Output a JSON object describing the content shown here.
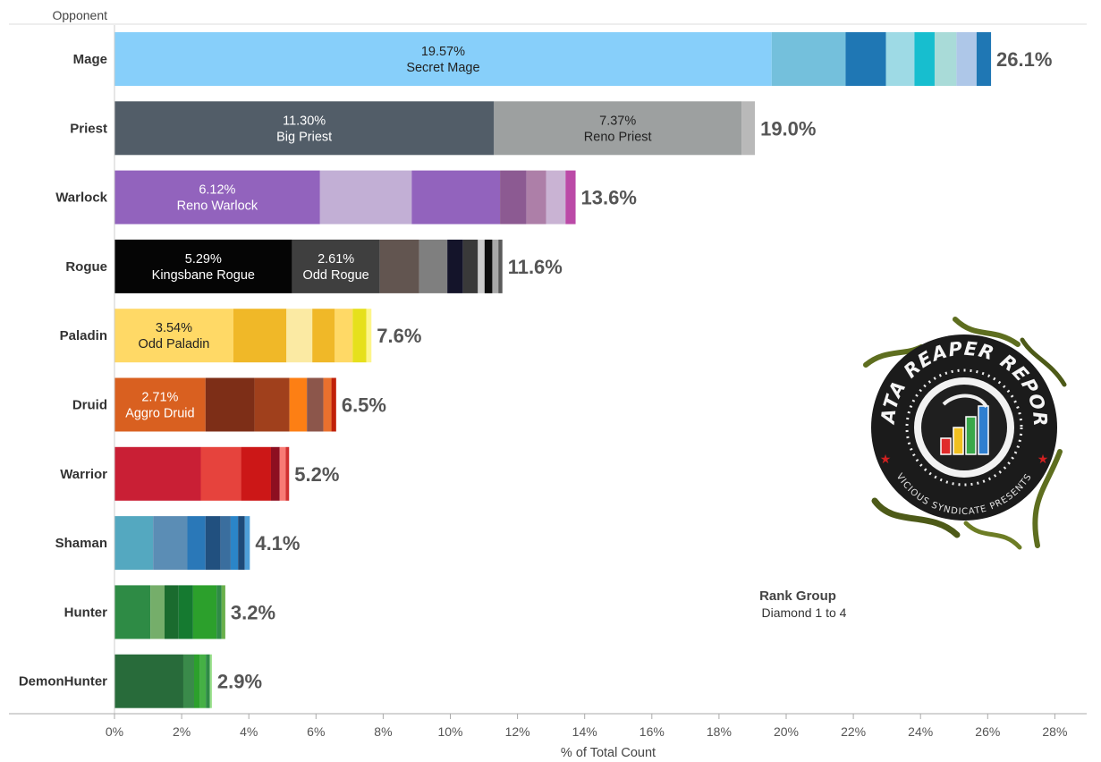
{
  "chart_data": {
    "type": "bar",
    "orientation": "horizontal",
    "stacked": true,
    "row_header": "Opponent",
    "xlabel": "% of Total Count",
    "xlim": [
      0,
      28
    ],
    "x_ticks": [
      "0%",
      "2%",
      "4%",
      "6%",
      "8%",
      "10%",
      "12%",
      "14%",
      "16%",
      "18%",
      "20%",
      "22%",
      "24%",
      "26%",
      "28%"
    ],
    "grid": false,
    "rank_group": {
      "title": "Rank Group",
      "value": "Diamond 1 to 4"
    },
    "categories": [
      {
        "name": "Mage",
        "total_label": "26.1%",
        "total": 26.1,
        "segments": [
          {
            "value": 19.57,
            "color": "#87cffa",
            "pct_label": "19.57%",
            "name": "Secret Mage",
            "text_color": "#222222"
          },
          {
            "value": 2.2,
            "color": "#74c0dc"
          },
          {
            "value": 1.2,
            "color": "#1f77b4"
          },
          {
            "value": 0.85,
            "color": "#9edae5"
          },
          {
            "value": 0.6,
            "color": "#17becf"
          },
          {
            "value": 0.65,
            "color": "#a9dbd8"
          },
          {
            "value": 0.6,
            "color": "#aec7e8"
          },
          {
            "value": 0.43,
            "color": "#1f77b4"
          }
        ]
      },
      {
        "name": "Priest",
        "total_label": "19.0%",
        "total": 19.0,
        "segments": [
          {
            "value": 11.3,
            "color": "#525d68",
            "pct_label": "11.30%",
            "name": "Big Priest",
            "text_color": "#ffffff"
          },
          {
            "value": 7.37,
            "color": "#9da0a0",
            "pct_label": "7.37%",
            "name": "Reno Priest",
            "text_color": "#222222"
          },
          {
            "value": 0.4,
            "color": "#b9b9b9"
          }
        ]
      },
      {
        "name": "Warlock",
        "total_label": "13.6%",
        "total": 13.6,
        "segments": [
          {
            "value": 6.12,
            "color": "#9263bd",
            "pct_label": "6.12%",
            "name": "Reno Warlock",
            "text_color": "#ffffff"
          },
          {
            "value": 2.73,
            "color": "#c2afd5"
          },
          {
            "value": 2.63,
            "color": "#9263bd"
          },
          {
            "value": 0.79,
            "color": "#8c5a92"
          },
          {
            "value": 0.58,
            "color": "#ad7fa8"
          },
          {
            "value": 0.58,
            "color": "#c9b3d3"
          },
          {
            "value": 0.3,
            "color": "#bb4aa7"
          }
        ]
      },
      {
        "name": "Rogue",
        "total_label": "11.6%",
        "total": 11.6,
        "segments": [
          {
            "value": 5.29,
            "color": "#050505",
            "pct_label": "5.29%",
            "name": "Kingsbane Rogue",
            "text_color": "#ffffff"
          },
          {
            "value": 2.61,
            "color": "#3f3f3f",
            "pct_label": "2.61%",
            "name": "Odd Rogue",
            "text_color": "#ffffff"
          },
          {
            "value": 1.17,
            "color": "#625550"
          },
          {
            "value": 0.84,
            "color": "#7f7f7f"
          },
          {
            "value": 0.47,
            "color": "#14142a"
          },
          {
            "value": 0.44,
            "color": "#393939"
          },
          {
            "value": 0.2,
            "color": "#cccccc"
          },
          {
            "value": 0.23,
            "color": "#0d0d0d"
          },
          {
            "value": 0.18,
            "color": "#a8a8a8"
          },
          {
            "value": 0.12,
            "color": "#5a5a5a"
          }
        ]
      },
      {
        "name": "Paladin",
        "total_label": "7.6%",
        "total": 7.6,
        "segments": [
          {
            "value": 3.54,
            "color": "#ffd966",
            "pct_label": "3.54%",
            "name": "Odd Paladin",
            "text_color": "#222222"
          },
          {
            "value": 1.58,
            "color": "#f0b828"
          },
          {
            "value": 0.77,
            "color": "#fbeaa3"
          },
          {
            "value": 0.67,
            "color": "#f0b828"
          },
          {
            "value": 0.53,
            "color": "#ffd966"
          },
          {
            "value": 0.41,
            "color": "#e6e01c"
          },
          {
            "value": 0.15,
            "color": "#fdf58a"
          }
        ]
      },
      {
        "name": "Druid",
        "total_label": "6.5%",
        "total": 6.5,
        "segments": [
          {
            "value": 2.71,
            "color": "#d96020",
            "pct_label": "2.71%",
            "name": "Aggro Druid",
            "text_color": "#ffffff"
          },
          {
            "value": 1.46,
            "color": "#7d2e17"
          },
          {
            "value": 1.04,
            "color": "#a0401c"
          },
          {
            "value": 0.52,
            "color": "#fd7f14"
          },
          {
            "value": 0.49,
            "color": "#8c564b"
          },
          {
            "value": 0.24,
            "color": "#e9702e"
          },
          {
            "value": 0.14,
            "color": "#c02008"
          }
        ]
      },
      {
        "name": "Warrior",
        "total_label": "5.2%",
        "total": 5.2,
        "segments": [
          {
            "value": 2.57,
            "color": "#c91f35"
          },
          {
            "value": 1.2,
            "color": "#e6433d"
          },
          {
            "value": 0.89,
            "color": "#cc1717"
          },
          {
            "value": 0.26,
            "color": "#8d0f20"
          },
          {
            "value": 0.18,
            "color": "#f87a74"
          },
          {
            "value": 0.1,
            "color": "#d03030"
          }
        ]
      },
      {
        "name": "Shaman",
        "total_label": "4.1%",
        "total": 4.1,
        "segments": [
          {
            "value": 1.15,
            "color": "#54a8c0"
          },
          {
            "value": 1.02,
            "color": "#5b8db5"
          },
          {
            "value": 0.54,
            "color": "#2a78b8"
          },
          {
            "value": 0.45,
            "color": "#21507f"
          },
          {
            "value": 0.3,
            "color": "#3a6e9e"
          },
          {
            "value": 0.22,
            "color": "#2b85c8"
          },
          {
            "value": 0.2,
            "color": "#1e4a78"
          },
          {
            "value": 0.15,
            "color": "#4f9fd8"
          }
        ]
      },
      {
        "name": "Hunter",
        "total_label": "3.2%",
        "total": 3.2,
        "segments": [
          {
            "value": 1.07,
            "color": "#2e8b45"
          },
          {
            "value": 0.42,
            "color": "#75ae6a"
          },
          {
            "value": 0.42,
            "color": "#1a6b2e"
          },
          {
            "value": 0.43,
            "color": "#157a30"
          },
          {
            "value": 0.7,
            "color": "#2ca02c"
          },
          {
            "value": 0.15,
            "color": "#2e8b45"
          },
          {
            "value": 0.11,
            "color": "#6ab04c"
          }
        ]
      },
      {
        "name": "DemonHunter",
        "total_label": "2.9%",
        "total": 2.9,
        "segments": [
          {
            "value": 2.05,
            "color": "#286b3a"
          },
          {
            "value": 0.32,
            "color": "#3a8a4a"
          },
          {
            "value": 0.18,
            "color": "#2ca02c"
          },
          {
            "value": 0.17,
            "color": "#45b045"
          },
          {
            "value": 0.12,
            "color": "#2e8b45"
          },
          {
            "value": 0.06,
            "color": "#98df8a"
          }
        ]
      }
    ]
  },
  "logo": {
    "text_top": "DATA REAPER REPORT",
    "text_bottom": "VICIOUS SYNDICATE PRESENTS",
    "ring_color": "#1b1b1b",
    "vine_color": "#5e6e1f",
    "bar_colors": [
      "#e02b2b",
      "#f0c020",
      "#3aa84a",
      "#2f7fd0"
    ]
  }
}
